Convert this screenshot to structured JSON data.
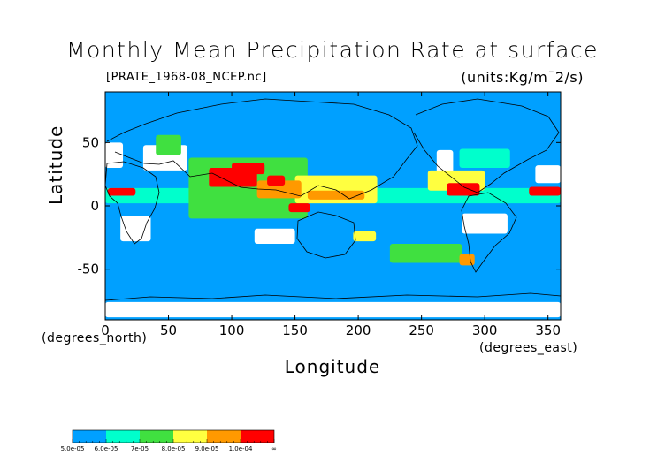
{
  "colors": {
    "background": "#00a0ff",
    "missing": "#ffffff",
    "coast": "#000000"
  },
  "chart_data": {
    "type": "heatmap",
    "title": "Monthly Mean Precipitation Rate at surface",
    "file_label": "[PRATE_1968-08_NCEP.nc]",
    "units_label": "(units:Kg/m¯2/s)",
    "xlabel": "Longitude",
    "xlabel_unit": "(degrees_east)",
    "ylabel": "Latitude",
    "ylabel_unit": "(degrees_north)",
    "xlim": [
      0,
      360
    ],
    "ylim": [
      -90,
      90
    ],
    "xticks": [
      0,
      50,
      100,
      150,
      200,
      250,
      300,
      350
    ],
    "yticks": [
      50,
      0,
      -50
    ],
    "legend": {
      "colors": [
        "#00a0ff",
        "#00ffcc",
        "#40e040",
        "#ffff40",
        "#ff9900",
        "#ff0000"
      ],
      "labels": [
        "5.0e-05",
        "6.0e-05",
        "7e-05",
        "8.0e-05",
        "9.0e-05",
        "1.0e-04",
        "∞"
      ]
    },
    "regions": [
      {
        "level": 5,
        "lon": [
          82,
          120
        ],
        "lat": [
          15,
          30
        ]
      },
      {
        "level": 5,
        "lon": [
          100,
          126
        ],
        "lat": [
          25,
          34
        ]
      },
      {
        "level": 5,
        "lon": [
          128,
          142
        ],
        "lat": [
          16,
          24
        ]
      },
      {
        "level": 5,
        "lon": [
          2,
          24
        ],
        "lat": [
          8,
          14
        ]
      },
      {
        "level": 5,
        "lon": [
          270,
          296
        ],
        "lat": [
          8,
          18
        ]
      },
      {
        "level": 5,
        "lon": [
          335,
          360
        ],
        "lat": [
          8,
          15
        ]
      },
      {
        "level": 5,
        "lon": [
          145,
          162
        ],
        "lat": [
          -5,
          2
        ]
      },
      {
        "level": 4,
        "lon": [
          120,
          155
        ],
        "lat": [
          6,
          20
        ]
      },
      {
        "level": 4,
        "lon": [
          160,
          205
        ],
        "lat": [
          5,
          12
        ]
      },
      {
        "level": 4,
        "lon": [
          280,
          292
        ],
        "lat": [
          -47,
          -38
        ]
      },
      {
        "level": 3,
        "lon": [
          150,
          215
        ],
        "lat": [
          2,
          24
        ]
      },
      {
        "level": 3,
        "lon": [
          255,
          300
        ],
        "lat": [
          12,
          28
        ]
      },
      {
        "level": 3,
        "lon": [
          196,
          214
        ],
        "lat": [
          -28,
          -20
        ]
      },
      {
        "level": 2,
        "lon": [
          66,
          160
        ],
        "lat": [
          -10,
          38
        ]
      },
      {
        "level": 2,
        "lon": [
          225,
          282
        ],
        "lat": [
          -45,
          -30
        ]
      },
      {
        "level": 2,
        "lon": [
          40,
          60
        ],
        "lat": [
          40,
          56
        ]
      },
      {
        "level": 1,
        "lon": [
          0,
          360
        ],
        "lat": [
          2,
          14
        ]
      },
      {
        "level": 1,
        "lon": [
          280,
          320
        ],
        "lat": [
          30,
          45
        ]
      },
      {
        "level": 0,
        "lon": [
          128,
          142
        ],
        "lat": [
          -40,
          -32
        ]
      },
      {
        "level": -1,
        "lon": [
          118,
          150
        ],
        "lat": [
          -30,
          -18
        ]
      },
      {
        "level": -1,
        "lon": [
          12,
          36
        ],
        "lat": [
          -28,
          -8
        ]
      },
      {
        "level": -1,
        "lon": [
          30,
          65
        ],
        "lat": [
          28,
          48
        ]
      },
      {
        "level": -1,
        "lon": [
          0,
          14
        ],
        "lat": [
          30,
          50
        ]
      },
      {
        "level": -1,
        "lon": [
          340,
          360
        ],
        "lat": [
          18,
          32
        ]
      },
      {
        "level": -1,
        "lon": [
          262,
          275
        ],
        "lat": [
          26,
          44
        ]
      },
      {
        "level": -1,
        "lon": [
          282,
          318
        ],
        "lat": [
          -22,
          -6
        ]
      },
      {
        "level": -1,
        "lon": [
          0,
          360
        ],
        "lat": [
          -88,
          -76
        ]
      }
    ]
  }
}
